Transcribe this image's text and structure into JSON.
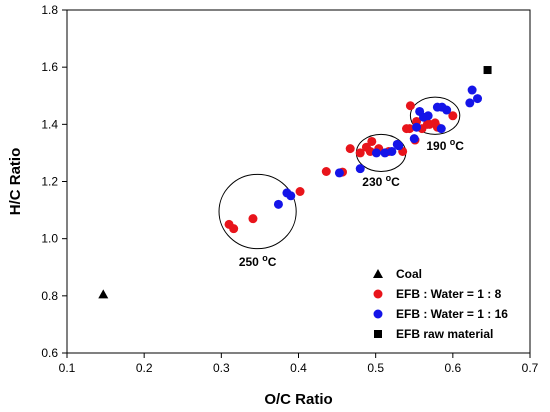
{
  "chart_data": {
    "type": "scatter",
    "xlabel": "O/C Ratio",
    "ylabel": "H/C Ratio",
    "xlim": [
      0.1,
      0.7
    ],
    "ylim": [
      0.6,
      1.8
    ],
    "x_ticks": [
      "0.1",
      "0.2",
      "0.3",
      "0.4",
      "0.5",
      "0.6",
      "0.7"
    ],
    "y_ticks": [
      "0.6",
      "0.8",
      "1.0",
      "1.2",
      "1.4",
      "1.6",
      "1.8"
    ],
    "legend_position": "bottom-right",
    "series": [
      {
        "name": "Coal",
        "marker": "triangle",
        "color": "#000000",
        "points": [
          [
            0.147,
            0.805
          ]
        ]
      },
      {
        "name": "EFB : Water = 1 : 8",
        "marker": "circle",
        "color": "#e8141b",
        "points": [
          [
            0.31,
            1.05
          ],
          [
            0.316,
            1.035
          ],
          [
            0.341,
            1.07
          ],
          [
            0.402,
            1.165
          ],
          [
            0.436,
            1.235
          ],
          [
            0.457,
            1.233
          ],
          [
            0.467,
            1.315
          ],
          [
            0.48,
            1.3
          ],
          [
            0.488,
            1.32
          ],
          [
            0.493,
            1.305
          ],
          [
            0.495,
            1.34
          ],
          [
            0.504,
            1.315
          ],
          [
            0.517,
            1.305
          ],
          [
            0.535,
            1.305
          ],
          [
            0.54,
            1.385
          ],
          [
            0.544,
            1.385
          ],
          [
            0.545,
            1.465
          ],
          [
            0.551,
            1.345
          ],
          [
            0.553,
            1.41
          ],
          [
            0.56,
            1.385
          ],
          [
            0.567,
            1.4
          ],
          [
            0.57,
            1.4
          ],
          [
            0.577,
            1.405
          ],
          [
            0.58,
            1.39
          ],
          [
            0.6,
            1.43
          ]
        ]
      },
      {
        "name": "EFB : Water = 1 : 16",
        "marker": "circle",
        "color": "#1414e8",
        "points": [
          [
            0.374,
            1.12
          ],
          [
            0.385,
            1.16
          ],
          [
            0.39,
            1.15
          ],
          [
            0.453,
            1.23
          ],
          [
            0.48,
            1.245
          ],
          [
            0.501,
            1.3
          ],
          [
            0.512,
            1.3
          ],
          [
            0.521,
            1.305
          ],
          [
            0.528,
            1.33
          ],
          [
            0.53,
            1.325
          ],
          [
            0.55,
            1.35
          ],
          [
            0.553,
            1.39
          ],
          [
            0.557,
            1.445
          ],
          [
            0.562,
            1.425
          ],
          [
            0.568,
            1.43
          ],
          [
            0.58,
            1.46
          ],
          [
            0.585,
            1.385
          ],
          [
            0.586,
            1.46
          ],
          [
            0.592,
            1.45
          ],
          [
            0.622,
            1.475
          ],
          [
            0.625,
            1.52
          ],
          [
            0.632,
            1.49
          ]
        ]
      },
      {
        "name": "EFB raw material",
        "marker": "square",
        "color": "#000000",
        "points": [
          [
            0.645,
            1.59
          ]
        ]
      }
    ],
    "annotations": [
      {
        "label": "250 °C",
        "circle_center": [
          0.347,
          1.095
        ],
        "circle_radius": [
          0.05,
          0.13
        ],
        "text_at": [
          0.347,
          0.905
        ]
      },
      {
        "label": "230 °C",
        "circle_center": [
          0.507,
          1.3
        ],
        "circle_radius": [
          0.032,
          0.065
        ],
        "text_at": [
          0.507,
          1.185
        ]
      },
      {
        "label": "190 °C",
        "circle_center": [
          0.577,
          1.43
        ],
        "circle_radius": [
          0.032,
          0.065
        ],
        "text_at": [
          0.59,
          1.31
        ]
      }
    ]
  }
}
